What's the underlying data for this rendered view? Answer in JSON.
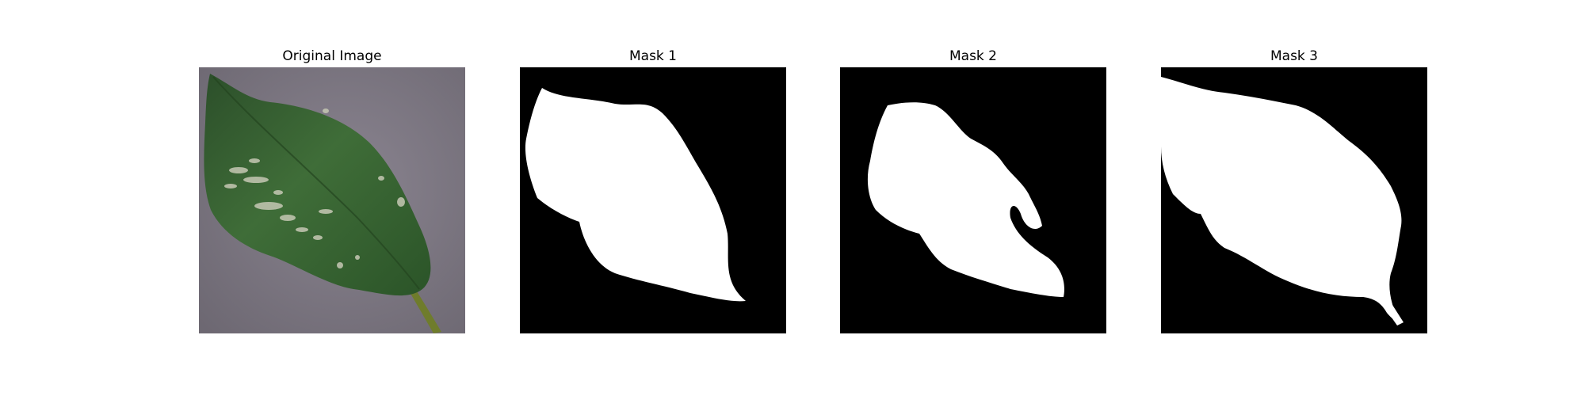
{
  "figure": {
    "panels": [
      {
        "title": "Original Image",
        "kind": "photo"
      },
      {
        "title": "Mask 1",
        "kind": "mask"
      },
      {
        "title": "Mask 2",
        "kind": "mask"
      },
      {
        "title": "Mask 3",
        "kind": "mask"
      }
    ]
  },
  "colors": {
    "background": "#7d7880",
    "leaf_dark": "#2f5a2c",
    "leaf_mid": "#3f6f38",
    "leaf_light": "#6b8e5a",
    "spot": "#c8c8b8",
    "stem": "#6f7c2c",
    "mask_bg": "#000000",
    "mask_fg": "#ffffff"
  }
}
